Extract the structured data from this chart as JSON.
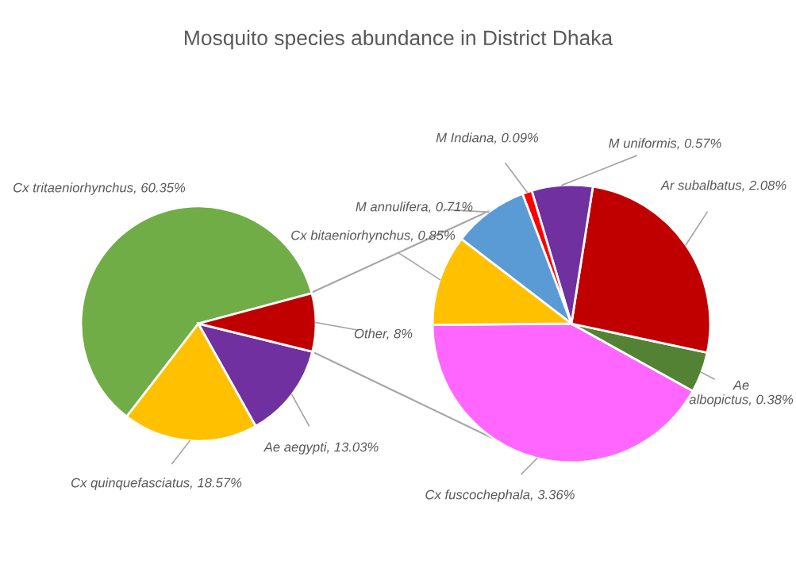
{
  "chart_data": [
    {
      "type": "pie",
      "title": "Mosquito species abundance in District Dhaka",
      "categories": [
        "Cx tritaeniorhynchus",
        "Cx quinquefasciatus",
        "Ae aegypti",
        "Other"
      ],
      "values": [
        60.35,
        18.57,
        13.03,
        8
      ],
      "colors": [
        "#70ad47",
        "#ffc000",
        "#7030a0",
        "#c00000"
      ],
      "value_labels": [
        "60.35%",
        "18.57%",
        "13.03%",
        "8%"
      ]
    },
    {
      "type": "pie",
      "categories": [
        "Cx fuscochephala",
        "Ae albopictus",
        "Ar subalbatus",
        "M uniformis",
        "M Indiana",
        "M annulifera",
        "Cx bitaeniorhynchus"
      ],
      "values": [
        3.36,
        0.38,
        2.08,
        0.57,
        0.09,
        0.71,
        0.85
      ],
      "colors": [
        "#ff66ff",
        "#548235",
        "#c00000",
        "#7030a0",
        "#ff0000",
        "#5b9bd5",
        "#ffc000"
      ],
      "value_labels": [
        "3.36%",
        "0.38%",
        "2.08%",
        "0.57%",
        "0.09%",
        "0.71%",
        "0.85%"
      ]
    }
  ]
}
